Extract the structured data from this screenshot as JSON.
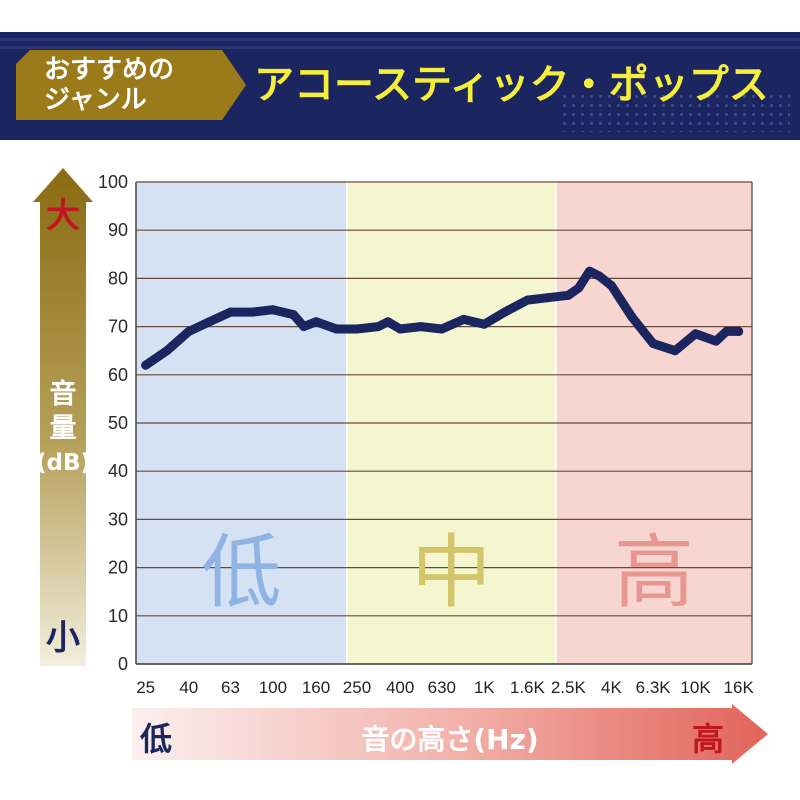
{
  "header": {
    "tag_line1": "おすすめの",
    "tag_line2": "ジャンル",
    "genre": "アコースティック・ポップス"
  },
  "colors": {
    "navy": "#1b2560",
    "gold": "#9a7a19",
    "low_zone": "#d4e2f3",
    "mid_zone": "#f4f6cf",
    "high_zone": "#f7d5d0",
    "low_text": "#8fb3e3",
    "mid_text": "#d4c46a",
    "high_text": "#e8978e",
    "line": "#1b2560",
    "red": "#c0171e"
  },
  "y_axis": {
    "big": "大",
    "small": "小",
    "label_line1": "音",
    "label_line2": "量",
    "label_line3": "(dB)"
  },
  "x_axis": {
    "low": "低",
    "high": "高",
    "label": "音の高さ(Hz)"
  },
  "chart_data": {
    "type": "line",
    "ylim": [
      0,
      100
    ],
    "yticks": [
      "0",
      "10",
      "20",
      "30",
      "40",
      "50",
      "60",
      "70",
      "80",
      "90",
      "100"
    ],
    "xticks": [
      "25",
      "40",
      "63",
      "100",
      "160",
      "250",
      "400",
      "630",
      "1K",
      "1.6K",
      "2.5K",
      "4K",
      "6.3K",
      "10K",
      "16K"
    ],
    "zones": [
      {
        "label": "低",
        "from": "25",
        "to": "250"
      },
      {
        "label": "中",
        "from": "250",
        "to": "2.5K"
      },
      {
        "label": "高",
        "from": "2.5K",
        "to": "16K"
      }
    ],
    "series": [
      {
        "x": [
          25,
          31.5,
          40,
          50,
          63,
          80,
          100,
          125,
          140,
          160,
          200,
          250,
          315,
          350,
          400,
          500,
          630,
          800,
          1000,
          1250,
          1600,
          2000,
          2500,
          2800,
          3150,
          3500,
          4000,
          5000,
          6300,
          8000,
          10000,
          12500,
          14000,
          16000
        ],
        "y": [
          62,
          65,
          69,
          71,
          73,
          73,
          73.5,
          72.5,
          70,
          71,
          69.5,
          69.5,
          70,
          71,
          69.5,
          70,
          69.5,
          71.5,
          70.5,
          73,
          75.5,
          76,
          76.5,
          78,
          81.5,
          80.5,
          78.5,
          72,
          66.5,
          65,
          68.5,
          67,
          69,
          69
        ]
      }
    ]
  }
}
